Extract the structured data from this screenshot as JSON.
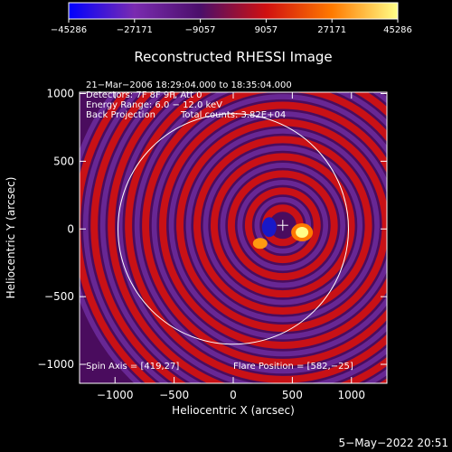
{
  "chart_data": {
    "type": "heatmap",
    "title": "Reconstructed RHESSI Image",
    "xlabel": "Heliocentric X (arcsec)",
    "ylabel": "Heliocentric Y (arcsec)",
    "xlim": [
      -1300,
      1300
    ],
    "ylim": [
      -1140,
      1010
    ],
    "x_ticks": [
      -1000,
      -500,
      0,
      500,
      1000
    ],
    "x_tick_labels": [
      "−1000",
      "−500",
      "0",
      "500",
      "1000"
    ],
    "y_ticks": [
      -1000,
      -500,
      0,
      500,
      1000
    ],
    "y_tick_labels": [
      "−1000",
      "−500",
      "0",
      "500",
      "1000"
    ],
    "colorbar": {
      "min": -45286,
      "max": 45286,
      "tick_values": [
        -45286,
        -27171,
        -9057,
        9057,
        27171,
        45286
      ],
      "tick_labels": [
        "−45286",
        "−27171",
        "−9057",
        "9057",
        "27171",
        "45286"
      ],
      "colors": [
        "#0000ff",
        "#7a2bb0",
        "#4b0f6a",
        "#d01010",
        "#ff7a00",
        "#ffff88"
      ]
    },
    "annotations": [
      "21−Mar−2006 18:29:04.000 to 18:35:04.000",
      "Detectors: 7F 8F 9F, Att 0",
      "Energy Range: 6.0 − 12.0 keV",
      "Back Projection"
    ],
    "total_counts_text": "Total counts: 3.82E+04",
    "spin_axis_text": "Spin Axis = [419,27]",
    "flare_position_text": "Flare Position = [582,−25]",
    "solar_disk": {
      "center": [
        0,
        0
      ],
      "radius_arcsec": 975
    },
    "spin_axis": [
      419,
      27
    ],
    "flare_position": [
      582,
      -25
    ],
    "ring_spacing_arcsec": 145
  },
  "timestamp": "5−May−2022 20:51"
}
